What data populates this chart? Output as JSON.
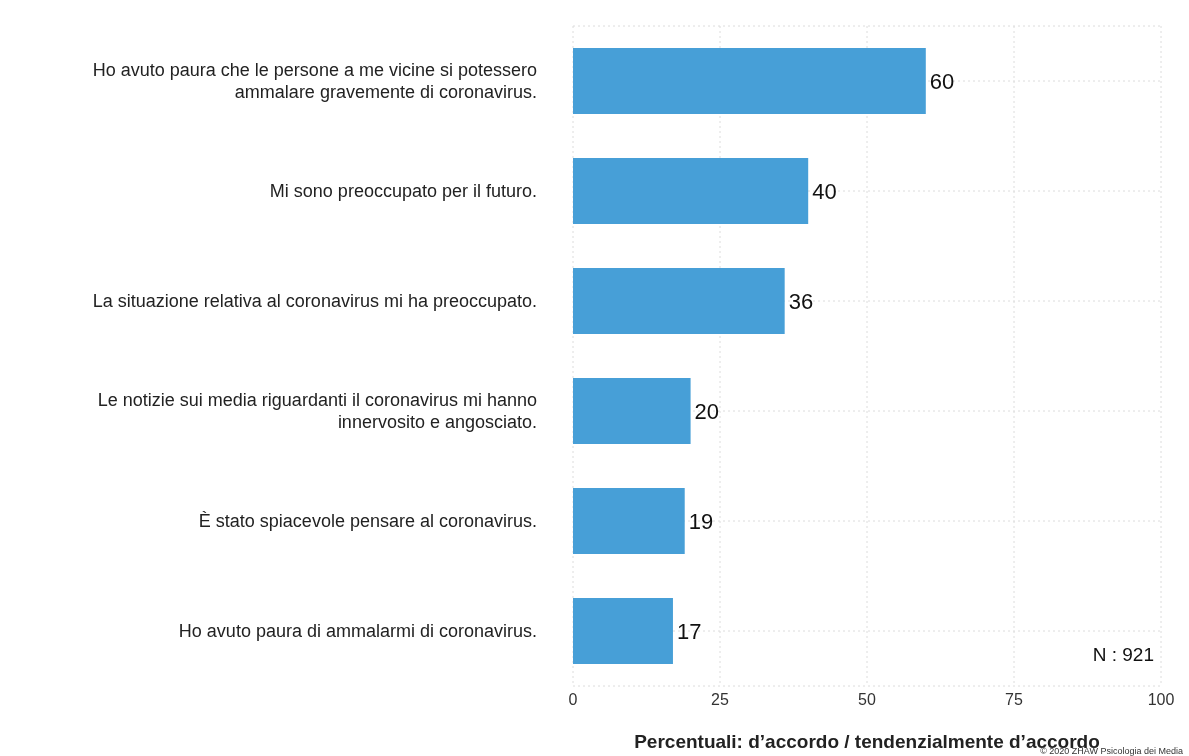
{
  "chart_data": {
    "type": "bar",
    "orientation": "horizontal",
    "categories": [
      "Ho avuto paura che le persone a me vicine si potessero ammalare gravemente di coronavirus.",
      "Mi sono preoccupato per il futuro.",
      "La situazione relativa al coronavirus mi ha preoccupato.",
      "Le notizie sui media riguardanti il coronavirus mi hanno innervosito e angosciato.",
      "È stato spiacevole pensare al coronavirus.",
      "Ho avuto paura di ammalarmi di coronavirus."
    ],
    "values": [
      60,
      40,
      36,
      20,
      19,
      17
    ],
    "color": "#479fd7",
    "data_labels": true,
    "xlabel": "Percentuali: d’accordo / tendenzialmente d’accordo",
    "xlim": [
      0,
      100
    ],
    "xticks": [
      0,
      25,
      50,
      75,
      100
    ],
    "grid": true,
    "annotations": [
      "N : 921",
      "© 2020 ZHAW Psicologia dei Media"
    ]
  }
}
